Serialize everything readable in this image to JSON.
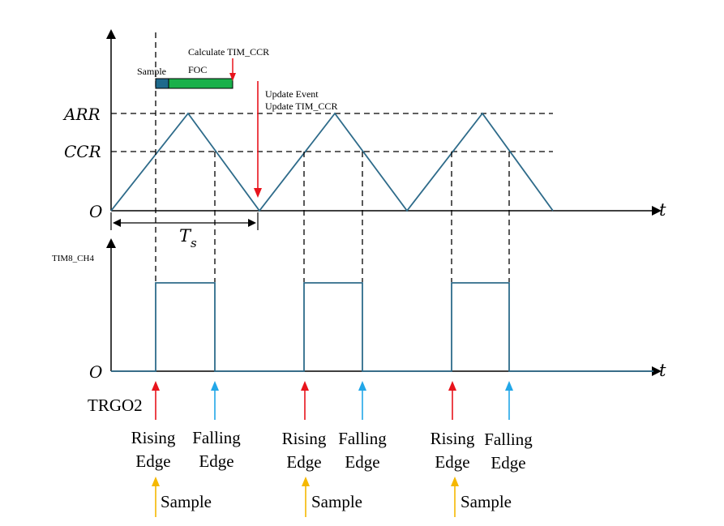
{
  "axes": {
    "y_origin_top": "O",
    "x_label_top": "t",
    "y_origin_bottom": "O",
    "x_label_bottom": "t"
  },
  "levels": {
    "arr": "ARR",
    "ccr": "CCR"
  },
  "period_label": {
    "main": "T",
    "sub": "s"
  },
  "annotations": {
    "sample": "Sample",
    "calculate": "Calculate TIM_CCR",
    "foc": "FOC",
    "update_event": "Update Event",
    "update_ccr": "Update TIM_CCR"
  },
  "channel_label": "TIM8_CH4",
  "trigger_label": "TRGO2",
  "edges": [
    {
      "rising_line1": "Rising",
      "rising_line2": "Edge",
      "falling_line1": "Falling",
      "falling_line2": "Edge",
      "sample": "Sample"
    },
    {
      "rising_line1": "Rising",
      "rising_line2": "Edge",
      "falling_line1": "Falling",
      "falling_line2": "Edge",
      "sample": "Sample"
    },
    {
      "rising_line1": "Rising",
      "rising_line2": "Edge",
      "falling_line1": "Falling",
      "falling_line2": "Edge",
      "sample": "Sample"
    }
  ],
  "colors": {
    "waveform": "#2E6B8A",
    "axis": "#000000",
    "red_arrow": "#E8141C",
    "blue_arrow": "#22A7E8",
    "yellow_arrow": "#F5B800",
    "sample_bar": "#1E6A8C",
    "foc_bar": "#19B04A"
  }
}
